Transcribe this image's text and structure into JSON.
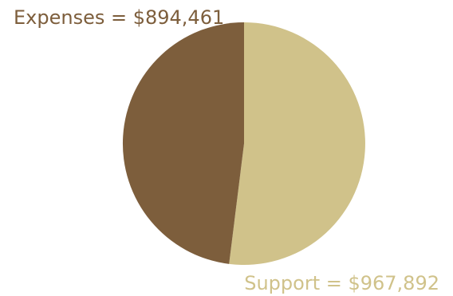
{
  "chart_data": {
    "type": "pie",
    "title": "",
    "slices": [
      {
        "label": "Expenses = $894,461",
        "category": "Expenses",
        "value": 894461,
        "color": "#7d5e3c"
      },
      {
        "label": "Support = $967,892",
        "category": "Support",
        "value": 967892,
        "color": "#d0c28a"
      }
    ],
    "start_angle_deg": 0,
    "direction": "clockwise",
    "legend": "none"
  }
}
